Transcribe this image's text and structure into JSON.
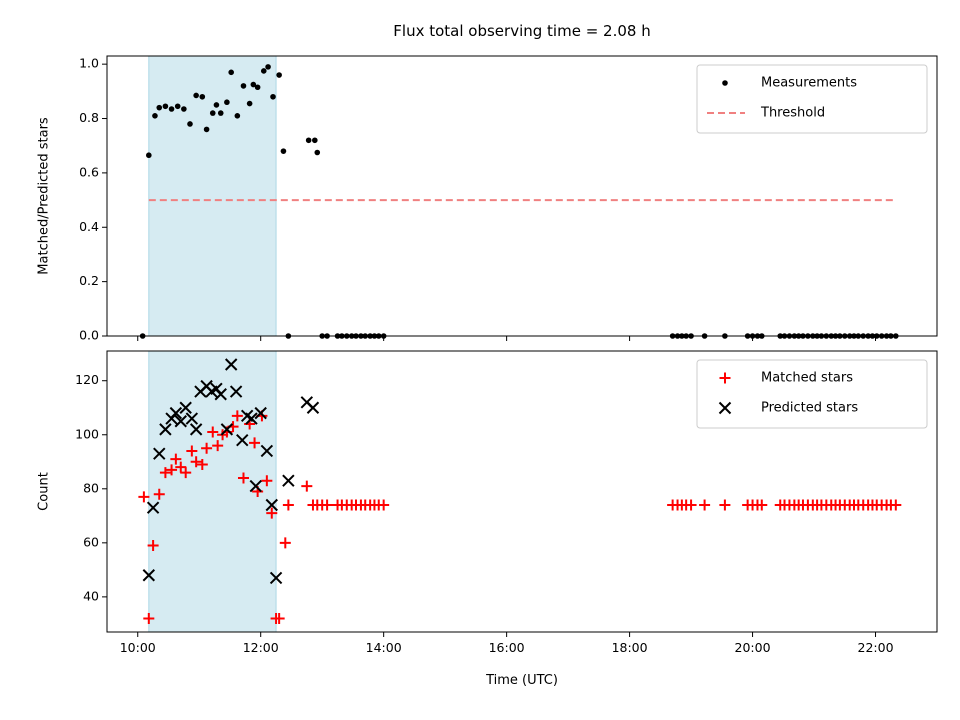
{
  "chart_data": [
    {
      "type": "scatter",
      "title": "Flux total observing time = 2.08 h",
      "xlabel": "",
      "ylabel": "Matched/Predicted stars",
      "x_unit": "hours UTC",
      "xlim": [
        9.5,
        23.0
      ],
      "ylim": [
        0.0,
        1.03
      ],
      "yticks": [
        "0.0",
        "0.2",
        "0.4",
        "0.6",
        "0.8",
        "1.0"
      ],
      "yticks_values": [
        0.0,
        0.2,
        0.4,
        0.6,
        0.8,
        1.0
      ],
      "shaded_region": {
        "x_start": 10.18,
        "x_end": 12.25,
        "color": "#add8e6"
      },
      "legend": {
        "placement": "top-right",
        "entries": [
          "Measurements",
          "Threshold"
        ]
      },
      "series": [
        {
          "name": "Measurements",
          "marker": "dot",
          "color": "#000000",
          "x": [
            10.08,
            10.18,
            10.28,
            10.35,
            10.45,
            10.55,
            10.65,
            10.75,
            10.85,
            10.95,
            11.05,
            11.12,
            11.22,
            11.28,
            11.35,
            11.45,
            11.52,
            11.62,
            11.72,
            11.82,
            11.88,
            11.95,
            12.05,
            12.12,
            12.2,
            12.3,
            12.37,
            12.45,
            12.78,
            12.88,
            12.92,
            13.0,
            13.08,
            13.25,
            13.32,
            13.4,
            13.48,
            13.55,
            13.63,
            13.7,
            13.78,
            13.85,
            13.92,
            14.0,
            18.7,
            18.78,
            18.85,
            18.92,
            19.0,
            19.22,
            19.55,
            19.92,
            20.0,
            20.08,
            20.15,
            20.45,
            20.52,
            20.6,
            20.68,
            20.75,
            20.82,
            20.9,
            20.98,
            21.05,
            21.12,
            21.2,
            21.28,
            21.35,
            21.42,
            21.5,
            21.58,
            21.65,
            21.72,
            21.8,
            21.88,
            21.95,
            22.02,
            22.1,
            22.18,
            22.25,
            22.33
          ],
          "y": [
            0.0,
            0.665,
            0.81,
            0.84,
            0.845,
            0.835,
            0.845,
            0.835,
            0.78,
            0.885,
            0.88,
            0.76,
            0.82,
            0.85,
            0.82,
            0.86,
            0.97,
            0.81,
            0.92,
            0.855,
            0.925,
            0.915,
            0.975,
            0.99,
            0.88,
            0.96,
            0.68,
            0.0,
            0.72,
            0.72,
            0.675,
            0.0,
            0.0,
            0.0,
            0.0,
            0.0,
            0.0,
            0.0,
            0.0,
            0.0,
            0.0,
            0.0,
            0.0,
            0.0,
            0.0,
            0.0,
            0.0,
            0.0,
            0.0,
            0.0,
            0.0,
            0.0,
            0.0,
            0.0,
            0.0,
            0.0,
            0.0,
            0.0,
            0.0,
            0.0,
            0.0,
            0.0,
            0.0,
            0.0,
            0.0,
            0.0,
            0.0,
            0.0,
            0.0,
            0.0,
            0.0,
            0.0,
            0.0,
            0.0,
            0.0,
            0.0,
            0.0,
            0.0,
            0.0,
            0.0,
            0.0
          ]
        },
        {
          "name": "Threshold",
          "type": "line",
          "style": "dashed",
          "color": "#f08080",
          "x": [
            10.18,
            22.33
          ],
          "y": [
            0.5,
            0.5
          ]
        }
      ]
    },
    {
      "type": "scatter",
      "title": "",
      "xlabel": "Time (UTC)",
      "ylabel": "Count",
      "x_unit": "hours UTC",
      "xlim": [
        9.5,
        23.0
      ],
      "ylim": [
        27,
        131
      ],
      "xticks": [
        "10:00",
        "12:00",
        "14:00",
        "16:00",
        "18:00",
        "20:00",
        "22:00"
      ],
      "xticks_values": [
        10,
        12,
        14,
        16,
        18,
        20,
        22
      ],
      "yticks": [
        "40",
        "60",
        "80",
        "100",
        "120"
      ],
      "yticks_values": [
        40,
        60,
        80,
        100,
        120
      ],
      "shaded_region": {
        "x_start": 10.18,
        "x_end": 12.25,
        "color": "#add8e6"
      },
      "legend": {
        "placement": "top-right",
        "entries": [
          "Matched stars",
          "Predicted stars"
        ]
      },
      "series": [
        {
          "name": "Matched stars",
          "marker": "plus",
          "color": "#ff0000",
          "x": [
            10.1,
            10.18,
            10.25,
            10.35,
            10.45,
            10.55,
            10.62,
            10.7,
            10.78,
            10.88,
            10.95,
            11.05,
            11.12,
            11.22,
            11.3,
            11.38,
            11.45,
            11.55,
            11.62,
            11.72,
            11.82,
            11.9,
            11.95,
            12.02,
            12.1,
            12.18,
            12.25,
            12.3,
            12.4,
            12.45,
            12.75,
            12.85,
            12.92,
            13.0,
            13.08,
            13.25,
            13.32,
            13.4,
            13.48,
            13.55,
            13.63,
            13.7,
            13.78,
            13.85,
            13.92,
            14.0,
            18.7,
            18.78,
            18.85,
            18.92,
            19.0,
            19.22,
            19.55,
            19.92,
            20.0,
            20.08,
            20.15,
            20.45,
            20.52,
            20.6,
            20.68,
            20.75,
            20.82,
            20.9,
            20.98,
            21.05,
            21.12,
            21.2,
            21.28,
            21.35,
            21.42,
            21.5,
            21.58,
            21.65,
            21.72,
            21.8,
            21.88,
            21.95,
            22.02,
            22.1,
            22.18,
            22.25,
            22.33
          ],
          "y": [
            77,
            32,
            59,
            78,
            86,
            87,
            91,
            88,
            86,
            94,
            90,
            89,
            95,
            101,
            96,
            100,
            101,
            103,
            107,
            84,
            104,
            97,
            79,
            107,
            83,
            71,
            32,
            32,
            60,
            74,
            81,
            74,
            74,
            74,
            74,
            74,
            74,
            74,
            74,
            74,
            74,
            74,
            74,
            74,
            74,
            74,
            74,
            74,
            74,
            74,
            74,
            74,
            74,
            74,
            74,
            74,
            74,
            74,
            74,
            74,
            74,
            74,
            74,
            74,
            74,
            74,
            74,
            74,
            74,
            74,
            74,
            74,
            74,
            74,
            74,
            74,
            74,
            74,
            74,
            74,
            74,
            74,
            74
          ]
        },
        {
          "name": "Predicted stars",
          "marker": "x",
          "color": "#000000",
          "x": [
            10.18,
            10.25,
            10.35,
            10.45,
            10.55,
            10.62,
            10.7,
            10.78,
            10.88,
            10.95,
            11.02,
            11.12,
            11.2,
            11.28,
            11.35,
            11.45,
            11.52,
            11.6,
            11.7,
            11.78,
            11.85,
            11.92,
            12.0,
            12.1,
            12.18,
            12.25,
            12.45,
            12.75,
            12.85
          ],
          "y": [
            48,
            73,
            93,
            102,
            106,
            108,
            105,
            110,
            106,
            102,
            116,
            118,
            116,
            117,
            115,
            102,
            126,
            116,
            98,
            107,
            106,
            81,
            108,
            94,
            74,
            47,
            83,
            112,
            110
          ]
        }
      ]
    }
  ]
}
